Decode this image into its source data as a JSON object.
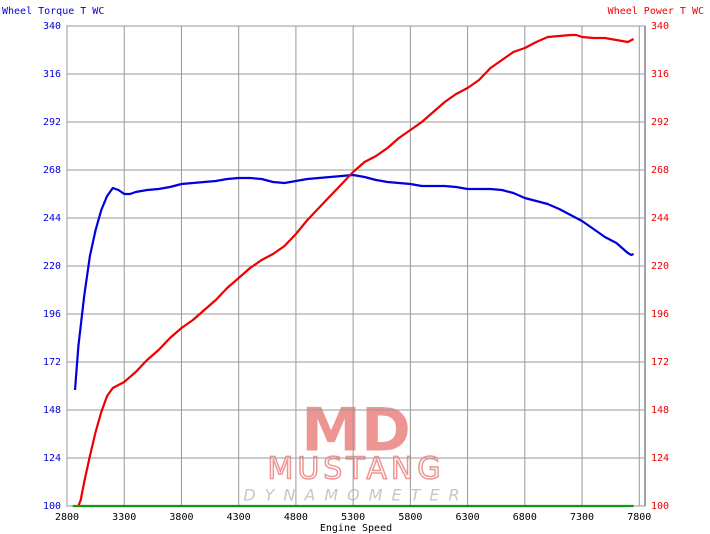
{
  "chart_data": {
    "type": "line",
    "y_label": "Wheel Torque T WC",
    "y2_label": "Wheel Power T WC",
    "x_label": "Engine Speed",
    "watermark": {
      "logo": "MD",
      "name": "MUSTANG",
      "sub": "DYNAMOMETER"
    },
    "xlim": [
      2800,
      7850
    ],
    "xticks": [
      2800,
      3300,
      3800,
      4300,
      4800,
      5300,
      5800,
      6300,
      6800,
      7300,
      7800
    ],
    "ylim": [
      100,
      340
    ],
    "yticks": [
      100,
      124,
      148,
      172,
      196,
      220,
      244,
      268,
      292,
      316,
      340
    ],
    "y2lim": [
      100,
      340
    ],
    "y2ticks": [
      100,
      124,
      148,
      172,
      196,
      220,
      244,
      268,
      292,
      316,
      340
    ],
    "grid": true,
    "series": [
      {
        "name": "Wheel Torque T WC",
        "color": "#0000dd",
        "x": [
          2870,
          2900,
          2950,
          3000,
          3050,
          3100,
          3150,
          3200,
          3250,
          3300,
          3350,
          3400,
          3500,
          3600,
          3700,
          3800,
          3900,
          4000,
          4100,
          4200,
          4300,
          4400,
          4500,
          4600,
          4700,
          4800,
          4900,
          5000,
          5100,
          5200,
          5300,
          5400,
          5500,
          5600,
          5700,
          5800,
          5900,
          6000,
          6100,
          6200,
          6300,
          6400,
          6500,
          6600,
          6700,
          6800,
          6900,
          7000,
          7100,
          7200,
          7300,
          7400,
          7500,
          7600,
          7700,
          7730,
          7750
        ],
        "values": [
          158,
          180,
          205,
          225,
          238,
          248,
          255,
          259,
          258,
          256,
          256,
          257,
          258,
          258.5,
          259.5,
          261,
          261.5,
          262,
          262.5,
          263.5,
          264,
          264,
          263.5,
          262,
          261.5,
          262.5,
          263.5,
          264,
          264.5,
          265,
          265.5,
          264.5,
          263,
          262,
          261.5,
          261,
          260,
          260,
          260,
          259.5,
          258.5,
          258.5,
          258.5,
          258,
          256.5,
          254,
          252.5,
          251,
          248.5,
          245.5,
          242.5,
          238.5,
          234.5,
          231.5,
          226.5,
          225.5,
          226
        ]
      },
      {
        "name": "Wheel Power T WC",
        "color": "#ee0000",
        "axis": "y2",
        "x": [
          2900,
          2920,
          2950,
          3000,
          3050,
          3100,
          3150,
          3200,
          3300,
          3400,
          3500,
          3600,
          3700,
          3800,
          3900,
          4000,
          4100,
          4200,
          4300,
          4400,
          4500,
          4600,
          4700,
          4800,
          4900,
          5000,
          5100,
          5200,
          5300,
          5400,
          5500,
          5600,
          5700,
          5800,
          5900,
          6000,
          6100,
          6200,
          6300,
          6400,
          6500,
          6600,
          6700,
          6800,
          6900,
          7000,
          7100,
          7200,
          7250,
          7300,
          7400,
          7500,
          7600,
          7700,
          7750
        ],
        "values": [
          100,
          103,
          112,
          125,
          137,
          147,
          155,
          159,
          162,
          167,
          173,
          178,
          184,
          189,
          193,
          198,
          203,
          209,
          214,
          219,
          223,
          226,
          230,
          236,
          243,
          249,
          255,
          261,
          267,
          272,
          275,
          279,
          284,
          288,
          292,
          297,
          302,
          306,
          309,
          313,
          319,
          323,
          327,
          329,
          332,
          334.5,
          335,
          335.5,
          335.5,
          334.5,
          334,
          334,
          333,
          332,
          333.5
        ]
      },
      {
        "color": "#119911",
        "x": [
          2850,
          7750
        ],
        "values": [
          100,
          100
        ]
      }
    ]
  }
}
